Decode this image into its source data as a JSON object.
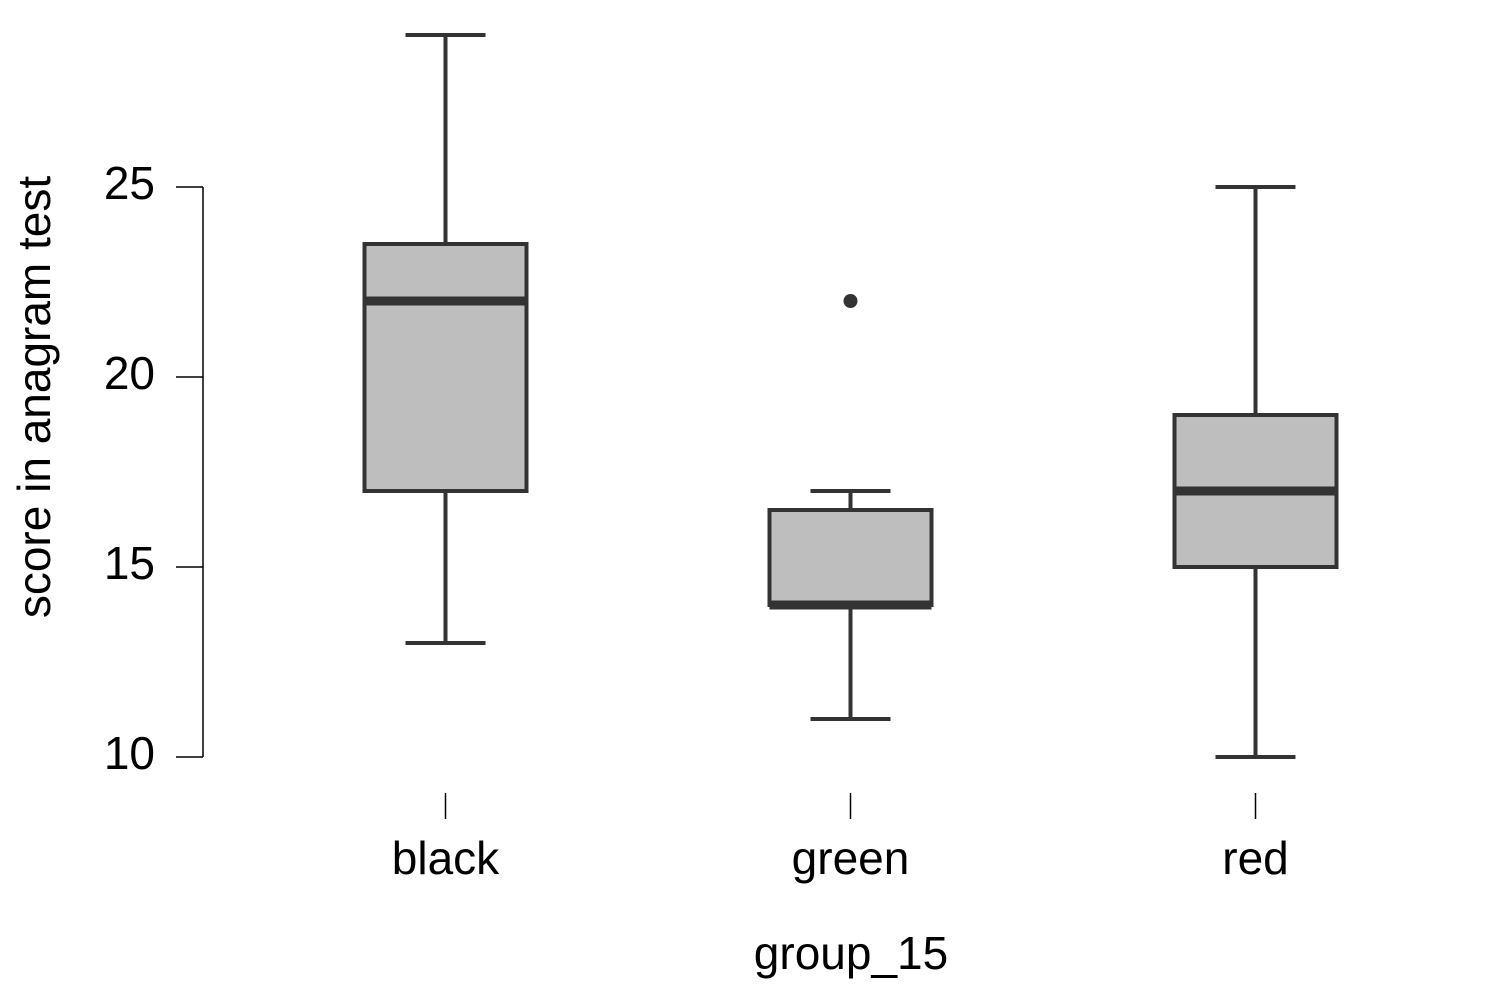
{
  "chart_data": {
    "type": "box",
    "x_label": "group_15",
    "y_label": "score in anagram test",
    "categories": [
      "black",
      "green",
      "red"
    ],
    "min": [
      13,
      11,
      10
    ],
    "q1": [
      17,
      14,
      15
    ],
    "median": [
      22,
      14,
      17
    ],
    "q3": [
      23.5,
      16.5,
      19
    ],
    "max": [
      29,
      17,
      25
    ],
    "outliers": [
      [],
      [
        22
      ],
      []
    ],
    "fill_color": "#bebebe",
    "line_color": "#333333",
    "ylim": [
      9,
      29.5
    ],
    "yticks": [
      10,
      15,
      20,
      25
    ]
  }
}
